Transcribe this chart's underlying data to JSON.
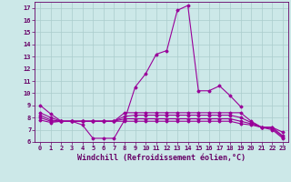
{
  "xlabel": "Windchill (Refroidissement éolien,°C)",
  "background_color": "#cce8e8",
  "grid_color": "#aacccc",
  "line_color": "#990099",
  "xlim": [
    -0.5,
    23.5
  ],
  "ylim": [
    6,
    17.5
  ],
  "xticks": [
    0,
    1,
    2,
    3,
    4,
    5,
    6,
    7,
    8,
    9,
    10,
    11,
    12,
    13,
    14,
    15,
    16,
    17,
    18,
    19,
    20,
    21,
    22,
    23
  ],
  "yticks": [
    6,
    7,
    8,
    9,
    10,
    11,
    12,
    13,
    14,
    15,
    16,
    17
  ],
  "lines": [
    {
      "x": [
        0,
        1,
        2,
        3,
        4,
        5,
        6,
        7,
        8,
        9,
        10,
        11,
        12,
        13,
        14,
        15,
        16,
        17,
        18,
        19,
        20,
        21,
        22,
        23
      ],
      "y": [
        9.0,
        8.3,
        7.7,
        7.7,
        7.4,
        6.3,
        6.3,
        6.3,
        7.8,
        10.5,
        11.6,
        13.2,
        13.5,
        16.8,
        17.2,
        10.2,
        10.2,
        10.6,
        9.8,
        8.9,
        null,
        null,
        null,
        null
      ]
    },
    {
      "x": [
        0,
        1,
        2,
        3,
        4,
        5,
        6,
        7,
        8,
        9,
        10,
        11,
        12,
        13,
        14,
        15,
        16,
        17,
        18,
        19,
        20,
        21,
        22,
        23
      ],
      "y": [
        8.4,
        8.0,
        7.7,
        7.7,
        7.7,
        7.7,
        7.7,
        7.7,
        8.4,
        8.4,
        8.4,
        8.4,
        8.4,
        8.4,
        8.4,
        8.4,
        8.4,
        8.4,
        8.4,
        8.4,
        7.7,
        7.2,
        7.2,
        6.8
      ]
    },
    {
      "x": [
        0,
        1,
        2,
        3,
        4,
        5,
        6,
        7,
        8,
        9,
        10,
        11,
        12,
        13,
        14,
        15,
        16,
        17,
        18,
        19,
        20,
        21,
        22,
        23
      ],
      "y": [
        8.2,
        7.8,
        7.7,
        7.7,
        7.7,
        7.7,
        7.7,
        7.7,
        8.1,
        8.2,
        8.2,
        8.2,
        8.2,
        8.2,
        8.2,
        8.2,
        8.2,
        8.2,
        8.2,
        8.0,
        7.6,
        7.2,
        7.2,
        6.5
      ]
    },
    {
      "x": [
        0,
        1,
        2,
        3,
        4,
        5,
        6,
        7,
        8,
        9,
        10,
        11,
        12,
        13,
        14,
        15,
        16,
        17,
        18,
        19,
        20,
        21,
        22,
        23
      ],
      "y": [
        8.0,
        7.7,
        7.7,
        7.7,
        7.7,
        7.7,
        7.7,
        7.7,
        7.9,
        7.9,
        7.9,
        7.9,
        7.9,
        7.9,
        7.9,
        7.9,
        7.9,
        7.9,
        7.9,
        7.7,
        7.5,
        7.2,
        7.1,
        6.4
      ]
    },
    {
      "x": [
        0,
        1,
        2,
        3,
        4,
        5,
        6,
        7,
        8,
        9,
        10,
        11,
        12,
        13,
        14,
        15,
        16,
        17,
        18,
        19,
        20,
        21,
        22,
        23
      ],
      "y": [
        7.8,
        7.6,
        7.7,
        7.7,
        7.7,
        7.7,
        7.7,
        7.7,
        7.7,
        7.7,
        7.7,
        7.7,
        7.7,
        7.7,
        7.7,
        7.7,
        7.7,
        7.7,
        7.7,
        7.5,
        7.4,
        7.2,
        7.0,
        6.3
      ]
    }
  ],
  "marker": "D",
  "markersize": 1.5,
  "linewidth": 0.8,
  "tick_fontsize": 5.0,
  "xlabel_fontsize": 6.0
}
